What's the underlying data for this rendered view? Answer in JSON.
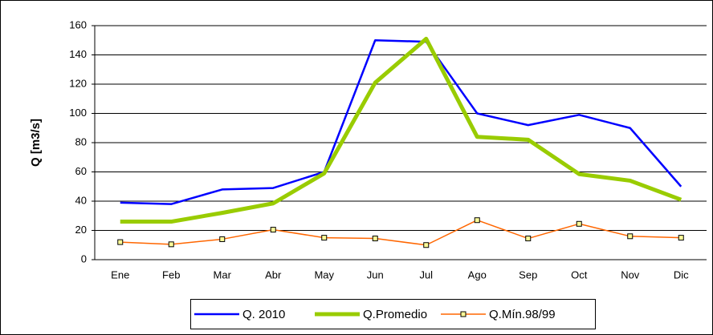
{
  "chart_data": {
    "type": "line",
    "ylabel": "Q [m3/s]",
    "categories": [
      "Ene",
      "Feb",
      "Mar",
      "Abr",
      "May",
      "Jun",
      "Jul",
      "Ago",
      "Sep",
      "Oct",
      "Nov",
      "Dic"
    ],
    "series": [
      {
        "name": "Q. 2010",
        "color": "#0000ff",
        "values": [
          39,
          38,
          48,
          49,
          60,
          150,
          149,
          100,
          92,
          99,
          90,
          50
        ]
      },
      {
        "name": "Q.Promedio",
        "color": "#99cc00",
        "values": [
          26,
          26,
          32,
          38.5,
          59,
          121,
          151,
          84,
          82,
          58.5,
          54,
          41
        ]
      },
      {
        "name": "Q.Mín.98/99",
        "color": "#ff6600",
        "values": [
          12,
          10.5,
          14,
          20.5,
          15,
          14.5,
          10,
          27,
          14.5,
          24.5,
          16,
          15
        ]
      }
    ],
    "ylim": [
      0,
      160
    ],
    "yticks": [
      0,
      20,
      40,
      60,
      80,
      100,
      120,
      140,
      160
    ],
    "grid": true,
    "legend": "bottom"
  }
}
